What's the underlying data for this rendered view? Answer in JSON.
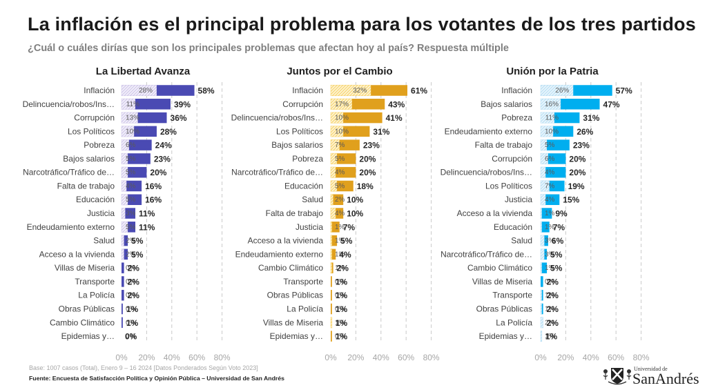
{
  "header": {
    "title": "La inflación es el principal problema para los votantes de los tres partidos",
    "subtitle": "¿Cuál o cuáles dirías que son los principales problemas que afectan hoy al país? Respuesta múltiple"
  },
  "chart_data": [
    {
      "type": "bar",
      "orientation": "horizontal",
      "title": "La Libertad Avanza",
      "categories": [
        "Inflación",
        "Delincuencia/robos/Ins…",
        "Corrupción",
        "Los Políticos",
        "Pobreza",
        "Bajos salarios",
        "Narcotráfico/Tráfico de…",
        "Falta de trabajo",
        "Educación",
        "Justicia",
        "Endeudamiento externo",
        "Salud",
        "Acceso a la vivienda",
        "Villas de Miseria",
        "Transporte",
        "La Policía",
        "Obras Públicas",
        "Cambio Climático",
        "Epidemias y…"
      ],
      "series": [
        {
          "style": "hatched",
          "values": [
            28,
            11,
            13,
            10,
            6,
            5,
            5,
            4,
            5,
            3,
            5,
            2,
            2,
            0,
            0,
            0,
            0,
            0,
            0
          ]
        },
        {
          "style": "solid",
          "values": [
            58,
            39,
            36,
            28,
            24,
            23,
            20,
            16,
            16,
            11,
            11,
            5,
            5,
            2,
            2,
            2,
            1,
            1,
            0
          ]
        }
      ],
      "value_unit": "%",
      "xlabel": "",
      "ylabel": "",
      "xlim": [
        0,
        80
      ],
      "xticks": [
        0,
        20,
        40,
        60,
        80
      ],
      "xtick_labels": [
        "0%",
        "20%",
        "40%",
        "60%",
        "80%"
      ],
      "grid": true,
      "legend": "none",
      "colors": {
        "solid": "#4a4ab3",
        "hatch": "#c4b9e4",
        "hatch_bg": "#f2effa"
      }
    },
    {
      "type": "bar",
      "orientation": "horizontal",
      "title": "Juntos por el Cambio",
      "categories": [
        "Inflación",
        "Corrupción",
        "Delincuencia/robos/Ins…",
        "Los Políticos",
        "Bajos salarios",
        "Pobreza",
        "Narcotráfico/Tráfico de…",
        "Educación",
        "Salud",
        "Falta de trabajo",
        "Justicia",
        "Acceso a la vivienda",
        "Endeudamiento externo",
        "Cambio Climático",
        "Transporte",
        "Obras Públicas",
        "La Policía",
        "Villas de Miseria",
        "Epidemias y…"
      ],
      "series": [
        {
          "style": "hatched",
          "values": [
            32,
            17,
            10,
            10,
            7,
            5,
            4,
            5,
            2,
            4,
            1,
            1,
            1,
            1,
            0,
            0,
            0,
            1,
            0
          ]
        },
        {
          "style": "solid",
          "values": [
            61,
            43,
            41,
            31,
            23,
            20,
            20,
            18,
            10,
            10,
            7,
            5,
            4,
            2,
            1,
            1,
            1,
            1,
            1
          ]
        }
      ],
      "value_unit": "%",
      "xlabel": "",
      "ylabel": "",
      "xlim": [
        0,
        80
      ],
      "xticks": [
        0,
        20,
        40,
        60,
        80
      ],
      "xtick_labels": [
        "0%",
        "20%",
        "40%",
        "60%",
        "80%"
      ],
      "grid": true,
      "legend": "none",
      "colors": {
        "solid": "#e0a01d",
        "hatch": "#f6c94a",
        "hatch_bg": "#fdf3d2"
      }
    },
    {
      "type": "bar",
      "orientation": "horizontal",
      "title": "Unión por la Patria",
      "categories": [
        "Inflación",
        "Bajos salarios",
        "Pobreza",
        "Endeudamiento externo",
        "Falta de trabajo",
        "Corrupción",
        "Delincuencia/robos/Ins…",
        "Los Políticos",
        "Justicia",
        "Acceso a la vivienda",
        "Educación",
        "Salud",
        "Narcotráfico/Tráfico de…",
        "Cambio Climático",
        "Villas de Miseria",
        "Transporte",
        "Obras Públicas",
        "La Policía",
        "Epidemias y…"
      ],
      "series": [
        {
          "style": "hatched",
          "values": [
            26,
            16,
            11,
            10,
            5,
            6,
            4,
            7,
            4,
            1,
            1,
            3,
            3,
            1,
            0,
            1,
            1,
            2,
            1
          ]
        },
        {
          "style": "solid",
          "values": [
            57,
            47,
            31,
            26,
            23,
            20,
            20,
            19,
            15,
            9,
            7,
            6,
            5,
            5,
            2,
            2,
            2,
            2,
            1
          ]
        }
      ],
      "value_unit": "%",
      "xlabel": "",
      "ylabel": "",
      "xlim": [
        0,
        80
      ],
      "xticks": [
        0,
        20,
        40,
        60,
        80
      ],
      "xtick_labels": [
        "0%",
        "20%",
        "40%",
        "60%",
        "80%"
      ],
      "grid": true,
      "legend": "none",
      "colors": {
        "solid": "#00aeef",
        "hatch": "#a9d8f1",
        "hatch_bg": "#e8f5fc"
      }
    }
  ],
  "footer": {
    "base": "Base: 1007 casos (Total), Enero 9 – 16 2024 [Datos Ponderados Según Voto 2023]",
    "source": "Fuente: Encuesta de Satisfacción Política y Opinión Pública – Universidad de San Andrés"
  },
  "logo": {
    "line1": "Universidad de",
    "line2": "SanAndrés",
    "icon": "university-crest-icon"
  }
}
